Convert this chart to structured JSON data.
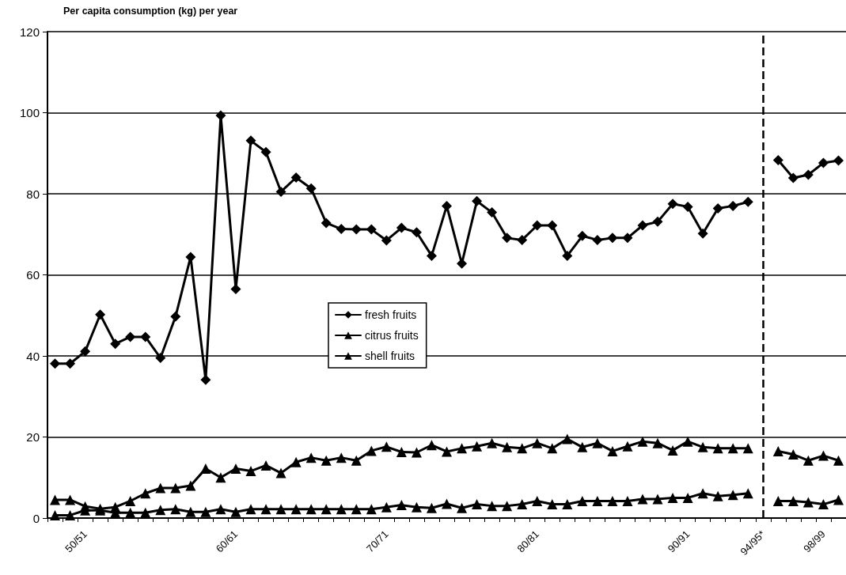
{
  "chart_data": {
    "type": "line",
    "title": "Per capita consumption (kg) per year",
    "categories": [
      null,
      null,
      "50/51",
      null,
      null,
      null,
      null,
      null,
      null,
      null,
      null,
      null,
      "60/61",
      null,
      null,
      null,
      null,
      null,
      null,
      null,
      null,
      null,
      "70/71",
      null,
      null,
      null,
      null,
      null,
      null,
      null,
      null,
      null,
      "80/81",
      null,
      null,
      null,
      null,
      null,
      null,
      null,
      null,
      null,
      "90/91",
      null,
      null,
      null,
      null,
      "94/95*",
      null,
      null,
      null,
      "98/99",
      null
    ],
    "series": [
      {
        "name": "fresh fruits",
        "color": "#000000",
        "marker": "diamond",
        "values": [
          38.1,
          38.1,
          41.1,
          50.2,
          43.0,
          44.7,
          44.7,
          39.5,
          49.7,
          64.4,
          34.1,
          99.3,
          56.5,
          93.1,
          90.3,
          80.5,
          84.0,
          81.3,
          72.8,
          71.3,
          71.2,
          71.2,
          68.5,
          71.6,
          70.5,
          64.7,
          77.0,
          62.8,
          78.2,
          75.4,
          69.1,
          68.6,
          72.2,
          72.2,
          64.7,
          69.6,
          68.6,
          69.1,
          69.1,
          72.2,
          73.1,
          77.5,
          76.8,
          70.2,
          76.4,
          77.0,
          78.0,
          null,
          88.3,
          83.9,
          84.7,
          87.6,
          88.2
        ]
      },
      {
        "name": "citrus fruits",
        "color": "#000000",
        "marker": "triangle",
        "values": [
          4.5,
          4.5,
          2.9,
          2.3,
          2.7,
          4.2,
          6.1,
          7.4,
          7.4,
          8.0,
          12.2,
          10.0,
          12.2,
          11.6,
          13.0,
          11.1,
          13.8,
          14.9,
          14.2,
          14.9,
          14.2,
          16.6,
          17.6,
          16.3,
          16.2,
          18.0,
          16.4,
          17.2,
          17.7,
          18.5,
          17.5,
          17.2,
          18.5,
          17.2,
          19.5,
          17.5,
          18.5,
          16.5,
          17.7,
          18.9,
          18.5,
          16.7,
          18.9,
          17.5,
          17.2,
          17.2,
          17.2,
          null,
          16.5,
          15.7,
          14.2,
          15.4,
          14.2
        ]
      },
      {
        "name": "shell fruits",
        "color": "#000000",
        "marker": "triangle",
        "values": [
          0.7,
          0.7,
          1.9,
          1.9,
          1.3,
          1.3,
          1.3,
          2.0,
          2.2,
          1.5,
          1.5,
          2.2,
          1.5,
          2.2,
          2.2,
          2.2,
          2.2,
          2.2,
          2.2,
          2.2,
          2.2,
          2.2,
          2.7,
          3.2,
          2.7,
          2.5,
          3.5,
          2.5,
          3.4,
          3.0,
          3.0,
          3.4,
          4.2,
          3.4,
          3.4,
          4.2,
          4.2,
          4.2,
          4.2,
          4.7,
          4.7,
          5.0,
          5.0,
          6.1,
          5.4,
          5.7,
          6.1,
          null,
          4.2,
          4.2,
          3.9,
          3.4,
          4.5
        ]
      }
    ],
    "ylim": [
      0,
      120
    ],
    "yticks": [
      0,
      20,
      40,
      60,
      80,
      100,
      120
    ],
    "grid": "y",
    "legend": "center left",
    "line_style": "solid",
    "ref_lines": [
      {
        "axis": "x",
        "value": "94/95*",
        "color": "#000000",
        "line_style": "dashed"
      }
    ]
  }
}
